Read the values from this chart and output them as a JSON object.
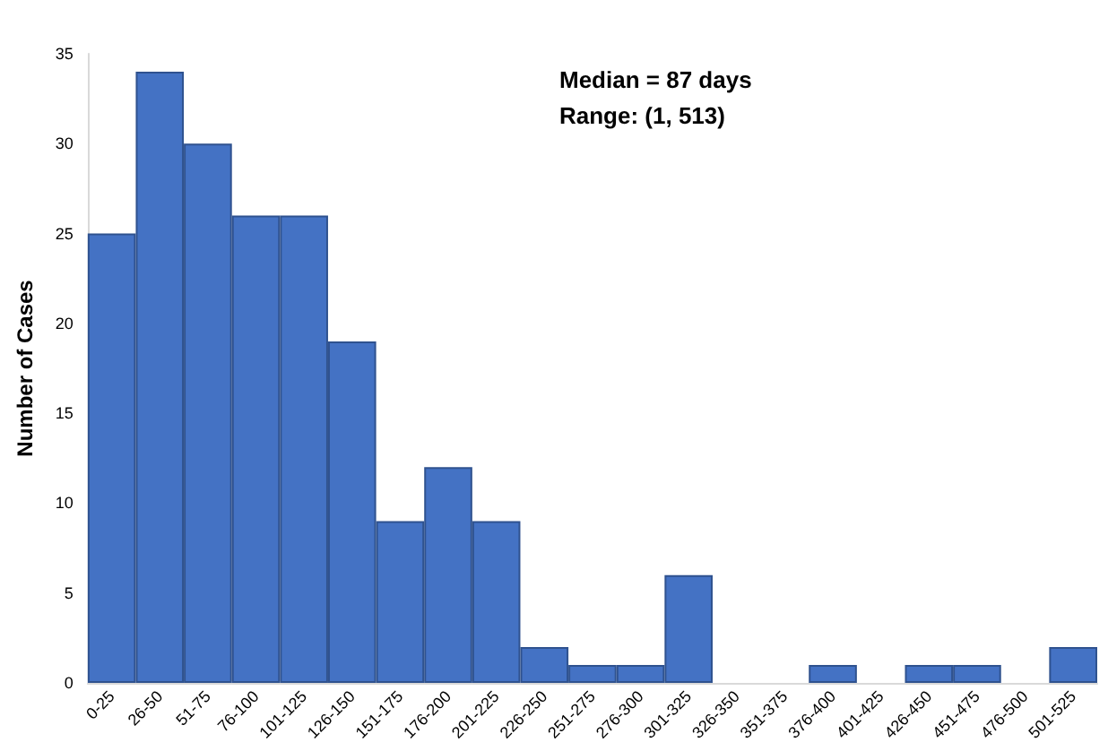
{
  "chart_data": {
    "type": "bar",
    "ylabel": "Number of Cases",
    "categories": [
      "0-25",
      "26-50",
      "51-75",
      "76-100",
      "101-125",
      "126-150",
      "151-175",
      "176-200",
      "201-225",
      "226-250",
      "251-275",
      "276-300",
      "301-325",
      "326-350",
      "351-375",
      "376-400",
      "401-425",
      "426-450",
      "451-475",
      "476-500",
      "501-525"
    ],
    "values": [
      25,
      34,
      30,
      26,
      26,
      19,
      9,
      12,
      9,
      2,
      1,
      1,
      6,
      0,
      0,
      1,
      0,
      1,
      1,
      0,
      2
    ],
    "color": "#4472c4",
    "ylim": [
      0,
      35
    ],
    "yticks": [
      0,
      5,
      10,
      15,
      20,
      25,
      30,
      35
    ],
    "grid": false,
    "annotations": [
      "Median = 87 days",
      "Range: (1, 513)"
    ]
  }
}
